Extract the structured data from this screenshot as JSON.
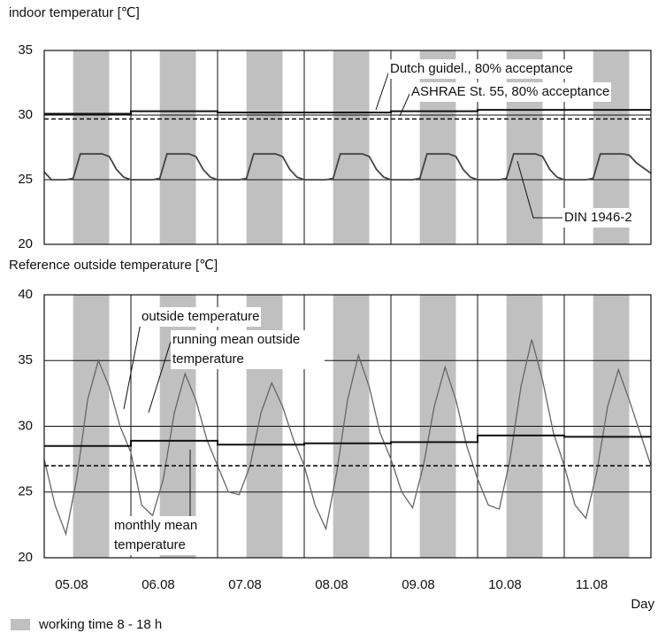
{
  "working_time": {
    "label": "working time 8 - 18 h",
    "color": "#c0c0c0",
    "spans": [
      [
        8,
        18
      ],
      [
        32,
        42
      ],
      [
        56,
        66
      ],
      [
        80,
        90
      ],
      [
        104,
        114
      ],
      [
        128,
        138
      ],
      [
        152,
        162
      ]
    ]
  },
  "chart_data": [
    {
      "type": "line",
      "title": "indoor temperatur [℃]",
      "xlim": [
        0,
        168
      ],
      "xticks": [
        24,
        48,
        72,
        96,
        120,
        144
      ],
      "show_xtick_labels": false,
      "ylim": [
        20,
        35
      ],
      "yticks": [
        20,
        25,
        30,
        35
      ],
      "grid": true,
      "series": [
        {
          "name": "Dutch guidel., 80% acceptance",
          "color": "#111111",
          "style": "solid",
          "width": 2,
          "x": [
            0,
            24,
            24,
            48,
            48,
            72,
            72,
            96,
            96,
            120,
            120,
            144,
            144,
            168
          ],
          "values": [
            30.1,
            30.1,
            30.3,
            30.3,
            30.2,
            30.2,
            30.2,
            30.2,
            30.3,
            30.3,
            30.4,
            30.4,
            30.4,
            30.4
          ]
        },
        {
          "name": "ASHRAE St. 55, 80% acceptance",
          "color": "#111111",
          "style": "dashed",
          "width": 1.6,
          "x": [
            0,
            168
          ],
          "values": [
            29.7,
            29.7
          ]
        },
        {
          "name": "DIN 1946-2",
          "color": "#444444",
          "style": "solid",
          "width": 1.8,
          "x": [
            0,
            2,
            4,
            6,
            8,
            10,
            12,
            14,
            16,
            18,
            20,
            22,
            24,
            26,
            28,
            30,
            32,
            34,
            36,
            38,
            40,
            42,
            44,
            46,
            48,
            50,
            52,
            54,
            56,
            58,
            60,
            62,
            64,
            66,
            68,
            70,
            72,
            74,
            76,
            78,
            80,
            82,
            84,
            86,
            88,
            90,
            92,
            94,
            96,
            98,
            100,
            102,
            104,
            106,
            108,
            110,
            112,
            114,
            116,
            118,
            120,
            122,
            124,
            126,
            128,
            130,
            132,
            134,
            136,
            138,
            140,
            142,
            144,
            146,
            148,
            150,
            152,
            154,
            156,
            158,
            160,
            162,
            164,
            166,
            168
          ],
          "values": [
            25.6,
            25,
            25,
            25,
            25.1,
            27,
            27,
            27,
            27,
            26.8,
            25.8,
            25.2,
            25,
            25,
            25,
            25,
            25.1,
            27,
            27,
            27,
            27,
            26.8,
            25.8,
            25.2,
            25,
            25,
            25,
            25,
            25.1,
            27,
            27,
            27,
            27,
            26.8,
            25.8,
            25.2,
            25,
            25,
            25,
            25,
            25.1,
            27,
            27,
            27,
            27,
            26.8,
            25.8,
            25.2,
            25,
            25,
            25,
            25,
            25.1,
            27,
            27,
            27,
            27,
            26.8,
            25.8,
            25.2,
            25,
            25,
            25,
            25,
            25.1,
            27,
            27,
            27,
            27,
            26.8,
            25.8,
            25.2,
            25,
            25,
            25,
            25,
            25.1,
            27,
            27,
            27,
            27,
            26.9,
            26.3,
            25.9,
            25.5
          ]
        }
      ]
    },
    {
      "type": "line",
      "title": "Reference outside temperature [℃]",
      "xlabel": "Day",
      "xlim": [
        0,
        168
      ],
      "xticks": [
        {
          "value": 0,
          "label": "05.08"
        },
        {
          "value": 24,
          "label": "06.08"
        },
        {
          "value": 48,
          "label": "07.08"
        },
        {
          "value": 72,
          "label": "08.08"
        },
        {
          "value": 96,
          "label": "09.08"
        },
        {
          "value": 120,
          "label": "10.08"
        },
        {
          "value": 144,
          "label": "11.08"
        }
      ],
      "show_xtick_labels": true,
      "ylim": [
        20,
        40
      ],
      "yticks": [
        20,
        25,
        30,
        35,
        40
      ],
      "grid": true,
      "series": [
        {
          "name": "outside temperature",
          "color": "#666666",
          "style": "solid",
          "width": 1.3,
          "x": [
            0,
            3,
            6,
            9,
            12,
            15,
            18,
            21,
            24,
            27,
            30,
            33,
            36,
            39,
            42,
            45,
            48,
            51,
            54,
            57,
            60,
            63,
            66,
            69,
            72,
            75,
            78,
            81,
            84,
            87,
            90,
            93,
            96,
            99,
            102,
            105,
            108,
            111,
            114,
            117,
            120,
            123,
            126,
            129,
            132,
            135,
            138,
            141,
            144,
            147,
            150,
            153,
            156,
            159,
            162,
            165,
            168
          ],
          "values": [
            27.5,
            24,
            21.8,
            26,
            32,
            35,
            33,
            30,
            28,
            24,
            23.2,
            26,
            31,
            34,
            32,
            29,
            27,
            25,
            24.8,
            27,
            31,
            33.3,
            31.5,
            29,
            27,
            24,
            22.2,
            26.5,
            32,
            35.4,
            33,
            29.5,
            27.5,
            25,
            23.8,
            27,
            31.5,
            34.5,
            32,
            28.5,
            26,
            24,
            23.7,
            27.5,
            33,
            36.6,
            33.5,
            29.5,
            27,
            24,
            23,
            26.5,
            31.5,
            34.3,
            32,
            29.5,
            27
          ]
        },
        {
          "name": "running mean outside temperature",
          "color": "#111111",
          "style": "solid",
          "width": 2,
          "x": [
            0,
            24,
            24,
            48,
            48,
            72,
            72,
            96,
            96,
            120,
            120,
            144,
            144,
            168
          ],
          "values": [
            28.5,
            28.5,
            28.9,
            28.9,
            28.6,
            28.6,
            28.7,
            28.7,
            28.8,
            28.8,
            29.3,
            29.3,
            29.2,
            29.2
          ]
        },
        {
          "name": "monthly mean temperature",
          "color": "#111111",
          "style": "dashed",
          "width": 1.6,
          "x": [
            0,
            168
          ],
          "values": [
            27,
            27
          ]
        }
      ]
    }
  ]
}
